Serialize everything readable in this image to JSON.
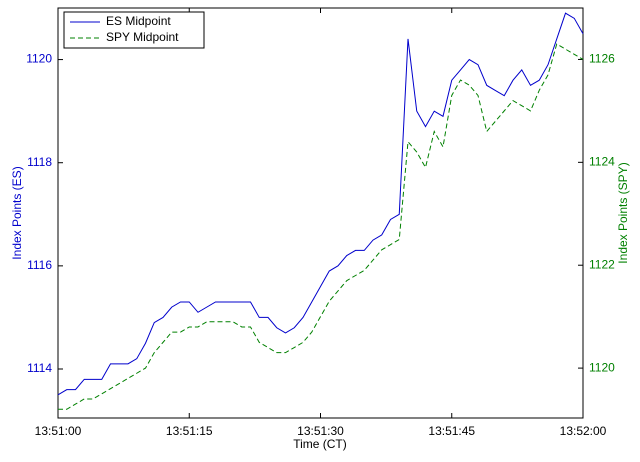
{
  "chart_data": {
    "type": "line",
    "x_label": "Time (CT)",
    "y_label": "Index Points (ES)",
    "y2_label": "Index Points (SPY)",
    "x": [
      "13:51:00",
      "13:51:01",
      "13:51:02",
      "13:51:03",
      "13:51:04",
      "13:51:05",
      "13:51:06",
      "13:51:07",
      "13:51:08",
      "13:51:09",
      "13:51:10",
      "13:51:11",
      "13:51:12",
      "13:51:13",
      "13:51:14",
      "13:51:15",
      "13:51:16",
      "13:51:17",
      "13:51:18",
      "13:51:19",
      "13:51:20",
      "13:51:21",
      "13:51:22",
      "13:51:23",
      "13:51:24",
      "13:51:25",
      "13:51:26",
      "13:51:27",
      "13:51:28",
      "13:51:29",
      "13:51:30",
      "13:51:31",
      "13:51:32",
      "13:51:33",
      "13:51:34",
      "13:51:35",
      "13:51:36",
      "13:51:37",
      "13:51:38",
      "13:51:39",
      "13:51:40",
      "13:51:41",
      "13:51:42",
      "13:51:43",
      "13:51:44",
      "13:51:45",
      "13:51:46",
      "13:51:47",
      "13:51:48",
      "13:51:49",
      "13:51:50",
      "13:51:51",
      "13:51:52",
      "13:51:53",
      "13:51:54",
      "13:51:55",
      "13:51:56",
      "13:51:57",
      "13:51:58",
      "13:51:59",
      "13:52:00"
    ],
    "series": [
      {
        "name": "ES Midpoint",
        "color": "#0000cc",
        "dash": false,
        "axis": "y",
        "values": [
          1113.5,
          1113.6,
          1113.6,
          1113.8,
          1113.8,
          1113.8,
          1114.1,
          1114.1,
          1114.1,
          1114.2,
          1114.5,
          1114.9,
          1115.0,
          1115.2,
          1115.3,
          1115.3,
          1115.1,
          1115.2,
          1115.3,
          1115.3,
          1115.3,
          1115.3,
          1115.3,
          1115.0,
          1115.0,
          1114.8,
          1114.7,
          1114.8,
          1115.0,
          1115.3,
          1115.6,
          1115.9,
          1116.0,
          1116.2,
          1116.3,
          1116.3,
          1116.5,
          1116.6,
          1116.9,
          1117.0,
          1120.4,
          1119.0,
          1118.7,
          1119.0,
          1118.9,
          1119.6,
          1119.8,
          1120.0,
          1119.9,
          1119.5,
          1119.4,
          1119.3,
          1119.6,
          1119.8,
          1119.5,
          1119.6,
          1119.9,
          1120.4,
          1120.9,
          1120.8,
          1120.5
        ]
      },
      {
        "name": "SPY Midpoint",
        "color": "#008000",
        "dash": true,
        "axis": "y2",
        "values": [
          1119.2,
          1119.2,
          1119.3,
          1119.4,
          1119.4,
          1119.5,
          1119.6,
          1119.7,
          1119.8,
          1119.9,
          1120.0,
          1120.3,
          1120.5,
          1120.7,
          1120.7,
          1120.8,
          1120.8,
          1120.9,
          1120.9,
          1120.9,
          1120.9,
          1120.8,
          1120.8,
          1120.5,
          1120.4,
          1120.3,
          1120.3,
          1120.4,
          1120.5,
          1120.7,
          1121.0,
          1121.3,
          1121.5,
          1121.7,
          1121.8,
          1121.9,
          1122.1,
          1122.3,
          1122.4,
          1122.5,
          1124.4,
          1124.2,
          1123.9,
          1124.6,
          1124.3,
          1125.3,
          1125.6,
          1125.5,
          1125.3,
          1124.6,
          1124.8,
          1125.0,
          1125.2,
          1125.1,
          1125.0,
          1125.4,
          1125.7,
          1126.3,
          1126.2,
          1126.1,
          1126.0
        ]
      }
    ],
    "xlim": [
      "13:51:00",
      "13:52:00"
    ],
    "xticks": [
      "13:51:00",
      "13:51:15",
      "13:51:30",
      "13:51:45",
      "13:52:00"
    ],
    "ylim": [
      1113.05,
      1121
    ],
    "yticks": [
      1114,
      1116,
      1118,
      1120
    ],
    "y2lim": [
      1119.03,
      1127
    ],
    "y2ticks": [
      1120,
      1122,
      1124,
      1126
    ],
    "legend": "upper left",
    "grid": false
  }
}
